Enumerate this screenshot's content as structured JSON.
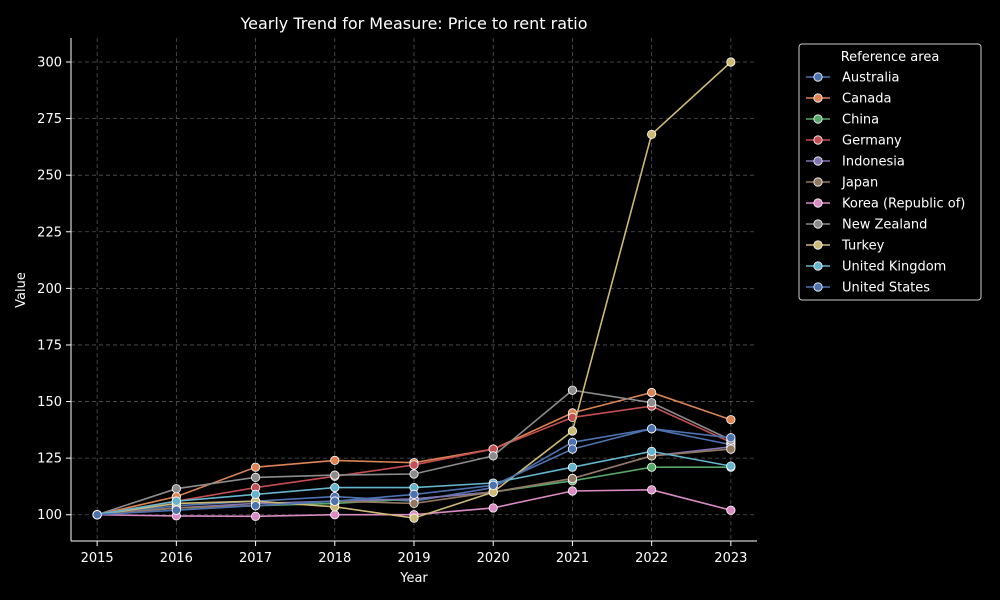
{
  "chart_data": {
    "type": "line",
    "title": "Yearly Trend for Measure: Price to rent ratio",
    "xlabel": "Year",
    "ylabel": "Value",
    "x": [
      2015,
      2016,
      2017,
      2018,
      2019,
      2020,
      2021,
      2022,
      2023
    ],
    "xlim": [
      2014.67,
      2023.33
    ],
    "ylim": [
      88.4,
      310.6
    ],
    "yticks": [
      100,
      125,
      150,
      175,
      200,
      225,
      250,
      275,
      300
    ],
    "grid": true,
    "legend": {
      "title": "Reference area",
      "placement": "outside-top-right"
    },
    "series": [
      {
        "name": "Australia",
        "color": "#4c72b0",
        "values": [
          100,
          104,
          106,
          108,
          106,
          112,
          132,
          138,
          131
        ]
      },
      {
        "name": "Canada",
        "color": "#dd8452",
        "values": [
          100,
          108,
          121,
          124,
          123,
          129,
          145,
          154,
          142
        ]
      },
      {
        "name": "China",
        "color": "#55a868",
        "values": [
          100,
          103,
          104,
          105,
          107,
          110,
          115,
          121,
          121
        ]
      },
      {
        "name": "Germany",
        "color": "#c44e52",
        "values": [
          100,
          106,
          112,
          117,
          122,
          129,
          143,
          148,
          132
        ]
      },
      {
        "name": "Indonesia",
        "color": "#8172b3",
        "values": [
          100,
          103,
          105,
          106,
          107,
          110,
          116,
          126,
          130
        ]
      },
      {
        "name": "Japan",
        "color": "#937860",
        "values": [
          100,
          103,
          104,
          106,
          105,
          110,
          116,
          126,
          129
        ]
      },
      {
        "name": "Korea (Republic of)",
        "color": "#da8bc3",
        "values": [
          100,
          99.5,
          99.3,
          100,
          100,
          103,
          110.5,
          111,
          102
        ]
      },
      {
        "name": "New Zealand",
        "color": "#8c8c8c",
        "values": [
          100,
          111.5,
          116.5,
          117.5,
          118,
          126,
          155,
          149.5,
          133
        ]
      },
      {
        "name": "Turkey",
        "color": "#ccb974",
        "values": [
          100,
          105,
          106,
          103.5,
          98.5,
          110,
          137,
          268,
          300
        ]
      },
      {
        "name": "United Kingdom",
        "color": "#64b5cd",
        "values": [
          100,
          106,
          109,
          112,
          112,
          114,
          121,
          128,
          121.5
        ]
      },
      {
        "name": "United States",
        "color": "#4c72b0",
        "values": [
          100,
          102,
          104,
          106,
          109,
          113,
          129,
          138,
          134
        ]
      }
    ]
  }
}
